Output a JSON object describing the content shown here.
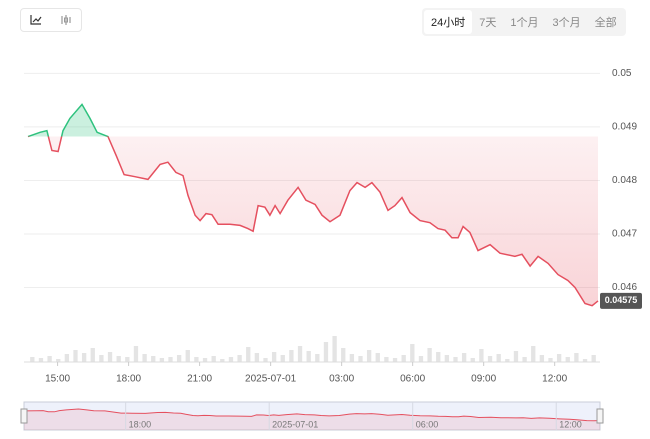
{
  "range_buttons": [
    "24小时",
    "7天",
    "1个月",
    "3个月",
    "全部"
  ],
  "selected_range": 0,
  "chart_data": {
    "type": "line",
    "xlim": [
      13.75,
      37.83
    ],
    "xticks": [
      {
        "value": 15,
        "label": "15:00"
      },
      {
        "value": 18,
        "label": "18:00"
      },
      {
        "value": 21,
        "label": "21:00"
      },
      {
        "value": 24,
        "label": "2025-07-01"
      },
      {
        "value": 27,
        "label": "03:00"
      },
      {
        "value": 30,
        "label": "06:00"
      },
      {
        "value": 33,
        "label": "09:00"
      },
      {
        "value": 36,
        "label": "12:00"
      }
    ],
    "ylim": [
      0.045,
      0.0504
    ],
    "yticks": [
      0.046,
      0.047,
      0.048,
      0.049,
      0.05
    ],
    "grid": true,
    "up_color": "#2ec27e",
    "down_color": "#e5505f",
    "series": [
      {
        "x": [
          13.75,
          14.26,
          14.55,
          14.76,
          15.02,
          15.23,
          15.52,
          16.03,
          16.37,
          16.67,
          17.13,
          17.47,
          17.81,
          18.27,
          18.82,
          19.33,
          19.66,
          20.0,
          20.3,
          20.51,
          20.81,
          21.02,
          21.27,
          21.52,
          21.78,
          22.28,
          22.71,
          23.04,
          23.26,
          23.47,
          23.76,
          23.97,
          24.19,
          24.4,
          24.73,
          25.16,
          25.49,
          25.88,
          26.17,
          26.51,
          26.93,
          27.35,
          27.65,
          27.99,
          28.28,
          28.62,
          28.96,
          29.25,
          29.55,
          29.89,
          30.31,
          30.73,
          31.07,
          31.37,
          31.66,
          31.92,
          32.13,
          32.42,
          32.76,
          33.27,
          33.69,
          34.32,
          34.62,
          34.96,
          35.3,
          35.72,
          36.14,
          36.56,
          36.86,
          37.28,
          37.58,
          37.83
        ],
        "values": [
          0.04882,
          0.0489,
          0.04893,
          0.04856,
          0.04854,
          0.04893,
          0.04916,
          0.04942,
          0.04916,
          0.0489,
          0.04882,
          0.04847,
          0.04811,
          0.04807,
          0.04802,
          0.0483,
          0.04834,
          0.04815,
          0.04809,
          0.04772,
          0.04735,
          0.04725,
          0.04738,
          0.04736,
          0.04718,
          0.04718,
          0.04716,
          0.0471,
          0.04705,
          0.04753,
          0.0475,
          0.04735,
          0.04753,
          0.04738,
          0.04763,
          0.04787,
          0.04763,
          0.04755,
          0.04735,
          0.04723,
          0.04735,
          0.04781,
          0.04796,
          0.04787,
          0.04796,
          0.04778,
          0.04744,
          0.04753,
          0.04768,
          0.0474,
          0.04725,
          0.04721,
          0.0471,
          0.04707,
          0.04693,
          0.04693,
          0.04714,
          0.04703,
          0.04669,
          0.0468,
          0.04664,
          0.04658,
          0.04662,
          0.0464,
          0.04658,
          0.04645,
          0.04624,
          0.04613,
          0.046,
          0.0457,
          0.04566,
          0.04575
        ]
      }
    ],
    "volume": {
      "color": "#e4e4e4",
      "values": [
        5,
        4,
        6,
        3,
        8,
        12,
        9,
        14,
        7,
        10,
        6,
        5,
        16,
        8,
        6,
        4,
        5,
        7,
        12,
        5,
        4,
        6,
        3,
        5,
        7,
        15,
        9,
        4,
        10,
        7,
        12,
        16,
        11,
        8,
        20,
        26,
        14,
        8,
        6,
        12,
        9,
        5,
        4,
        7,
        18,
        6,
        14,
        10,
        7,
        5,
        9,
        4,
        13,
        6,
        8,
        3,
        11,
        5,
        16,
        7,
        4,
        8,
        5,
        9,
        3,
        7
      ]
    }
  }
}
